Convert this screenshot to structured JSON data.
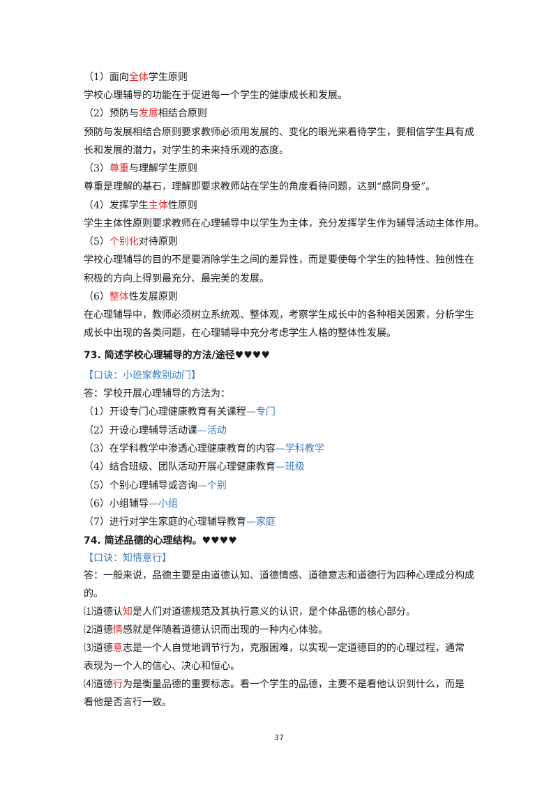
{
  "colors": {
    "highlight_red": "#e8292b",
    "highlight_blue": "#3a7fc2",
    "text": "#1a1a1a"
  },
  "sec72": {
    "p1": {
      "title_a": "（1）面向",
      "title_red": "全体",
      "title_b": "学生原则",
      "body": "学校心理辅导的功能在于促进每一个学生的健康成长和发展。"
    },
    "p2": {
      "title_a": "（2）预防与",
      "title_red": "发展",
      "title_b": "相结合原则",
      "body_1": "预防与发展相结合原则要求教师必须用发展的、变化的眼光来看待学生，要相信学生具有成",
      "body_2": "长和发展的潜力，对学生的未来持乐观的态度。"
    },
    "p3": {
      "title_a": "（3）",
      "title_red": "尊重",
      "title_b": "与理解学生原则",
      "body": "尊重是理解的基石，理解即要求教师站在学生的角度看待问题，达到“感同身受”。"
    },
    "p4": {
      "title_a": "（4）发挥学生",
      "title_red": "主体",
      "title_b": "性原则",
      "body": "学生主体性原则要求教师在心理辅导中以学生为主体，充分发挥学生作为辅导活动主体作用。"
    },
    "p5": {
      "title_a": "（5）",
      "title_red": "个别化",
      "title_b": "对待原则",
      "body_1": "学校心理辅导的目的不是要消除学生之间的差异性，而是要使每个学生的独特性、独创性在",
      "body_2": "积极的方向上得到最充分、最完美的发展。"
    },
    "p6": {
      "title_a": "（6）",
      "title_red": "整体",
      "title_b": "性发展原则",
      "body_1": "在心理辅导中，教师必须树立系统观、整体观，考察学生成长中的各种相关因素，分析学生",
      "body_2": "成长中出现的各类问题，在心理辅导中充分考虑学生人格的整体性发展。"
    }
  },
  "q73": {
    "heading": "73. 简述学校心理辅导的方法/途径♥♥♥♥",
    "mnemonic": "【口诀：小班家教别动门】",
    "answer_intro": "答：学校开展心理辅导的方法为：",
    "items": [
      {
        "text": "（1）开设专门心理健康教育有关课程",
        "key": "—专门"
      },
      {
        "text": "（2）开设心理辅导活动课",
        "key": "—活动"
      },
      {
        "text": "（3）在学科教学中渗透心理健康教育的内容",
        "key": "—学科教学"
      },
      {
        "text": "（4）结合班级、团队活动开展心理健康教育",
        "key": "—班级"
      },
      {
        "text": "（5）个别心理辅导或咨询",
        "key": "—个别"
      },
      {
        "text": "（6）小组辅导",
        "key": "—小组"
      },
      {
        "text": "（7）进行对学生家庭的心理辅导教育",
        "key": "—家庭"
      }
    ]
  },
  "q74": {
    "heading": "74. 简述品德的心理结构。♥♥♥♥",
    "mnemonic": "【口诀：知情意行】",
    "answer_1": "答：一般来说，品德主要是由道德认知、道德情感、道德意志和道德行为四种心理成分构成",
    "answer_2": "的。",
    "i1": {
      "a": "⑴道德认",
      "red": "知",
      "b": "是人们对道德规范及其执行意义的认识，是个体品德的核心部分。"
    },
    "i2": {
      "a": "⑵道德",
      "red": "情",
      "b": "感就是伴随着道德认识而出现的一种内心体验。"
    },
    "i3": {
      "a": "⑶道德",
      "red": "意",
      "b": "志是一个人自觉地调节行为，克服困难，以实现一定道德目的的心理过程，通常",
      "c": "表现为一个人的信心、决心和恒心。"
    },
    "i4": {
      "a": "⑷道德",
      "red": "行",
      "b": "为是衡量品德的重要标志。看一个学生的品德，主要不是看他认识到什么，而是",
      "c": "看他是否言行一致。"
    }
  },
  "page_number": "37"
}
